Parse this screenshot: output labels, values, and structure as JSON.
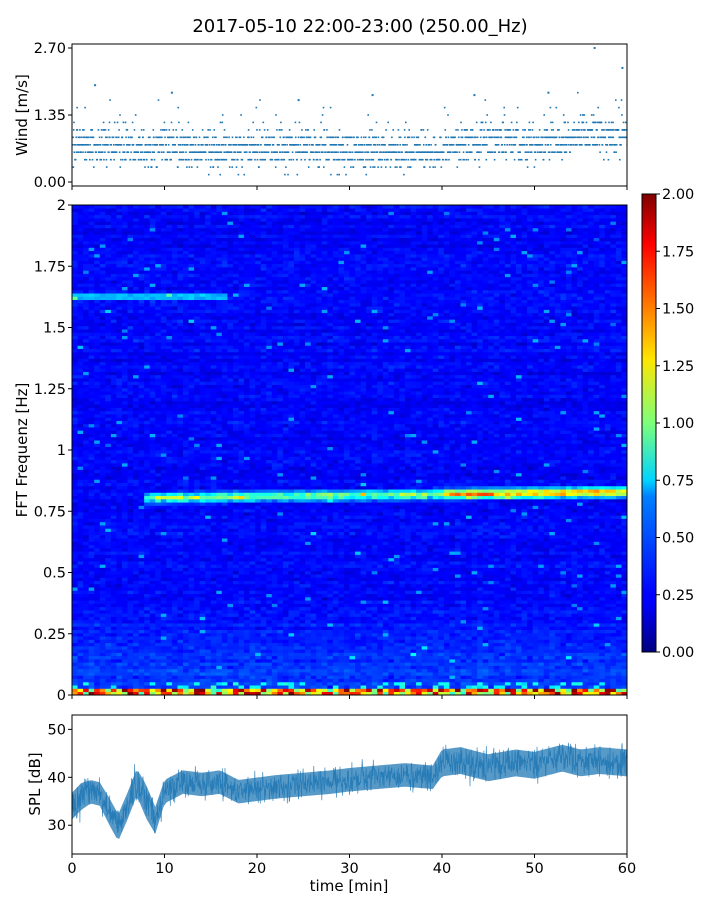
{
  "chart_data": [
    {
      "type": "scatter",
      "title": "2017-05-10 22:00-23:00 (250.00_Hz)",
      "ylabel": "Wind [m/s]",
      "xlim": [
        0,
        60
      ],
      "ylim": [
        0.0,
        2.7
      ],
      "yticks": [
        "0.00",
        "1.35",
        "2.70"
      ],
      "color": "#1f77b4",
      "marker": "small dots, values quantized in 0.15 m/s steps",
      "trend": [
        {
          "x": 0,
          "y": 0.7
        },
        {
          "x": 5,
          "y": 0.7
        },
        {
          "x": 10,
          "y": 0.75
        },
        {
          "x": 15,
          "y": 0.6
        },
        {
          "x": 20,
          "y": 0.65
        },
        {
          "x": 25,
          "y": 0.7
        },
        {
          "x": 30,
          "y": 0.65
        },
        {
          "x": 35,
          "y": 0.6
        },
        {
          "x": 40,
          "y": 0.65
        },
        {
          "x": 45,
          "y": 0.85
        },
        {
          "x": 50,
          "y": 0.75
        },
        {
          "x": 55,
          "y": 1.0
        },
        {
          "x": 60,
          "y": 0.85
        }
      ],
      "max_points": [
        {
          "x": 2.5,
          "y": 1.95
        },
        {
          "x": 10.8,
          "y": 1.8
        },
        {
          "x": 24.5,
          "y": 1.65
        },
        {
          "x": 32.5,
          "y": 1.75
        },
        {
          "x": 43.5,
          "y": 1.75
        },
        {
          "x": 51.5,
          "y": 1.8
        },
        {
          "x": 56.5,
          "y": 2.7
        },
        {
          "x": 59.5,
          "y": 2.3
        }
      ]
    },
    {
      "type": "heatmap",
      "ylabel": "FFT Frequenz [Hz]",
      "xlim": [
        0,
        60
      ],
      "ylim": [
        0,
        2
      ],
      "yticks": [
        "0",
        "0.25",
        "0.5",
        "0.75",
        "1",
        "1.25",
        "1.5",
        "1.75",
        "2"
      ],
      "colormap": "jet",
      "colorbar": {
        "range": [
          0.0,
          2.0
        ],
        "ticks": [
          "0.00",
          "0.25",
          "0.50",
          "0.75",
          "1.00",
          "1.25",
          "1.50",
          "1.75",
          "2.00"
        ]
      },
      "background_level": 0.25,
      "bands": [
        {
          "freq_hz": 0.82,
          "note": "persistent line, strongest after 40 min",
          "intensity": [
            0.55,
            1.6
          ]
        },
        {
          "freq_hz": 0.0,
          "note": "lowest bin, intermittent high values",
          "intensity": [
            1.0,
            1.9
          ]
        },
        {
          "freq_hz": 1.63,
          "note": "weak line before 17 min",
          "intensity": [
            0.6,
            0.7
          ]
        }
      ]
    },
    {
      "type": "line",
      "xlabel": "time [min]",
      "ylabel": "SPL [dB]",
      "xlim": [
        0,
        60
      ],
      "ylim": [
        24,
        53
      ],
      "xticks": [
        "0",
        "10",
        "20",
        "30",
        "40",
        "50",
        "60"
      ],
      "yticks": [
        "30",
        "40",
        "50"
      ],
      "color": "#1f77b4",
      "series": [
        {
          "x": [
            0,
            1,
            2,
            3,
            4,
            5,
            6,
            7,
            8,
            9,
            10,
            12,
            14,
            16,
            18,
            20,
            22,
            25,
            28,
            30,
            33,
            36,
            39,
            40,
            42,
            45,
            48,
            50,
            53,
            55,
            57,
            60
          ],
          "mean": [
            34,
            36,
            37,
            36.5,
            33,
            29.5,
            34,
            39,
            35,
            31,
            37,
            39,
            38.5,
            39,
            37,
            37.5,
            38,
            38.5,
            39,
            39.5,
            40,
            40.5,
            40,
            43,
            43.5,
            42,
            43,
            42.5,
            44,
            43,
            43.5,
            43
          ],
          "spread": [
            4,
            4,
            3.5,
            3.5,
            4,
            4,
            4,
            4,
            5,
            4,
            3.5,
            3.5,
            3.5,
            3.5,
            3.5,
            3.5,
            3.5,
            3.5,
            3.5,
            3.5,
            3.5,
            3.5,
            3.5,
            4,
            4,
            4,
            4,
            4,
            4,
            4,
            4,
            4
          ]
        }
      ]
    }
  ]
}
